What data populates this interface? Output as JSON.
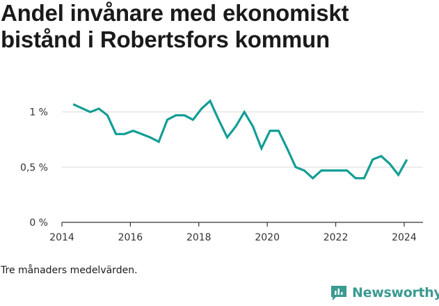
{
  "title": "Andel invånare med ekonomiskt bistånd i Robertsfors kommun",
  "note": "Tre månaders medelvärden.",
  "brand": {
    "name": "Newsworthy",
    "color": "#3b9a91",
    "icon": "newsworthy-logo-icon"
  },
  "chart_data": {
    "type": "line",
    "title": "Andel invånare med ekonomiskt bistånd i Robertsfors kommun",
    "xlabel": "",
    "ylabel": "",
    "xlim": [
      2014.0,
      2024.55
    ],
    "ylim": [
      0,
      1.2
    ],
    "x_ticks": [
      2014,
      2016,
      2018,
      2020,
      2022,
      2024
    ],
    "x_tick_labels": [
      "2014",
      "2016",
      "2018",
      "2020",
      "2022",
      "2024"
    ],
    "y_ticks": [
      0,
      0.5,
      1.0
    ],
    "y_tick_labels": [
      "0 %",
      "0,5 %",
      "1 %"
    ],
    "grid": "horizontal",
    "line_color": "#139e94",
    "series": [
      {
        "name": "",
        "x": [
          2014.33,
          2014.83,
          2015.08,
          2015.33,
          2015.58,
          2015.83,
          2016.08,
          2016.33,
          2016.58,
          2016.83,
          2017.08,
          2017.33,
          2017.58,
          2017.83,
          2018.08,
          2018.33,
          2018.58,
          2018.83,
          2019.08,
          2019.33,
          2019.58,
          2019.83,
          2020.08,
          2020.33,
          2020.58,
          2020.83,
          2021.08,
          2021.33,
          2021.58,
          2021.83,
          2022.08,
          2022.33,
          2022.58,
          2022.83,
          2023.08,
          2023.33,
          2023.58,
          2023.83,
          2024.08
        ],
        "values": [
          1.07,
          1.0,
          1.03,
          0.97,
          0.8,
          0.8,
          0.83,
          0.8,
          0.77,
          0.73,
          0.93,
          0.97,
          0.97,
          0.93,
          1.03,
          1.1,
          0.93,
          0.77,
          0.87,
          1.0,
          0.87,
          0.67,
          0.83,
          0.83,
          0.67,
          0.5,
          0.47,
          0.4,
          0.47,
          0.47,
          0.47,
          0.47,
          0.4,
          0.4,
          0.57,
          0.6,
          0.53,
          0.43,
          0.57
        ]
      }
    ]
  }
}
